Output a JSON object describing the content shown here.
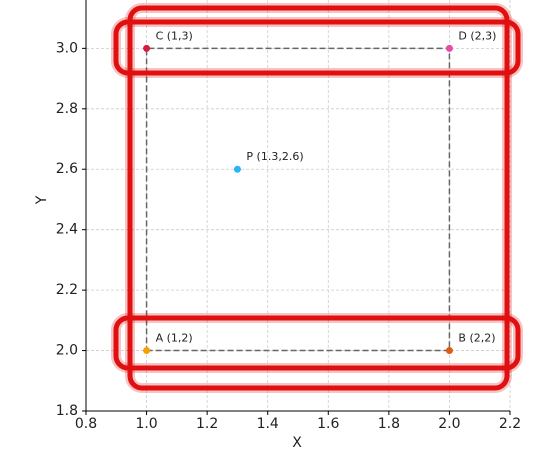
{
  "chart_data": {
    "type": "scatter",
    "x_label": "X",
    "y_label": "Y",
    "xlim": [
      0.8,
      2.2
    ],
    "ylim": [
      1.8,
      3.16
    ],
    "xticks": [
      0.8,
      {
        "value": 1,
        "label": "1.0"
      },
      1.2,
      1.4,
      1.6,
      1.8,
      {
        "value": 2,
        "label": "2.0"
      },
      2.2
    ],
    "yticks": [
      1.8,
      {
        "value": 2,
        "label": "2.0"
      },
      2.2,
      2.4,
      2.6,
      2.8,
      {
        "value": 3,
        "label": "3.0"
      }
    ],
    "grid": true,
    "outline": {
      "x": [
        1,
        2,
        2,
        1,
        1
      ],
      "y": [
        2,
        2,
        3,
        3,
        2
      ],
      "color": "#666666"
    },
    "series": [
      {
        "name": "A (1,2)",
        "color": "#f5a000",
        "x": [
          1
        ],
        "values": [
          2
        ]
      },
      {
        "name": "B (2,2)",
        "color": "#e05a10",
        "x": [
          2
        ],
        "values": [
          2
        ]
      },
      {
        "name": "C (1,3)",
        "color": "#d81b40",
        "x": [
          1
        ],
        "values": [
          3
        ]
      },
      {
        "name": "D (2,3)",
        "color": "#e84aa8",
        "x": [
          2
        ],
        "values": [
          3
        ]
      },
      {
        "name": "P (1.3,2.6)",
        "color": "#29b6f6",
        "x": [
          1.3
        ],
        "values": [
          2.6
        ]
      }
    ]
  }
}
